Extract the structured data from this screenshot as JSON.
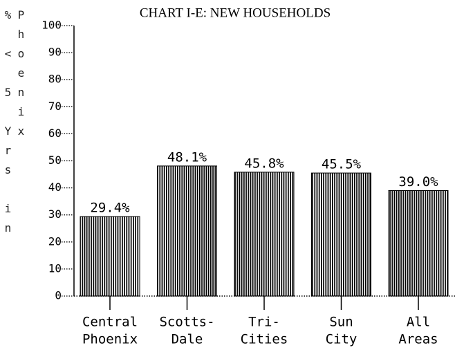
{
  "chart_data": {
    "type": "bar",
    "title": "CHART I-E: NEW HOUSEHOLDS",
    "y_axis_label": "% < 5 Yrs in Phoenix",
    "categories": [
      [
        "Central",
        "Phoenix"
      ],
      [
        "Scotts-",
        "Dale"
      ],
      [
        "Tri-",
        "Cities"
      ],
      [
        "Sun",
        "City"
      ],
      [
        "All",
        "Areas"
      ]
    ],
    "values": [
      29.4,
      48.1,
      45.8,
      45.5,
      39.0
    ],
    "value_labels": [
      "29.4%",
      "48.1%",
      "45.8%",
      "45.5%",
      "39.0%"
    ],
    "color": "#000000",
    "ylim": [
      0,
      100
    ],
    "yticks": [
      0,
      10,
      20,
      30,
      40,
      50,
      60,
      70,
      80,
      90,
      100
    ]
  }
}
